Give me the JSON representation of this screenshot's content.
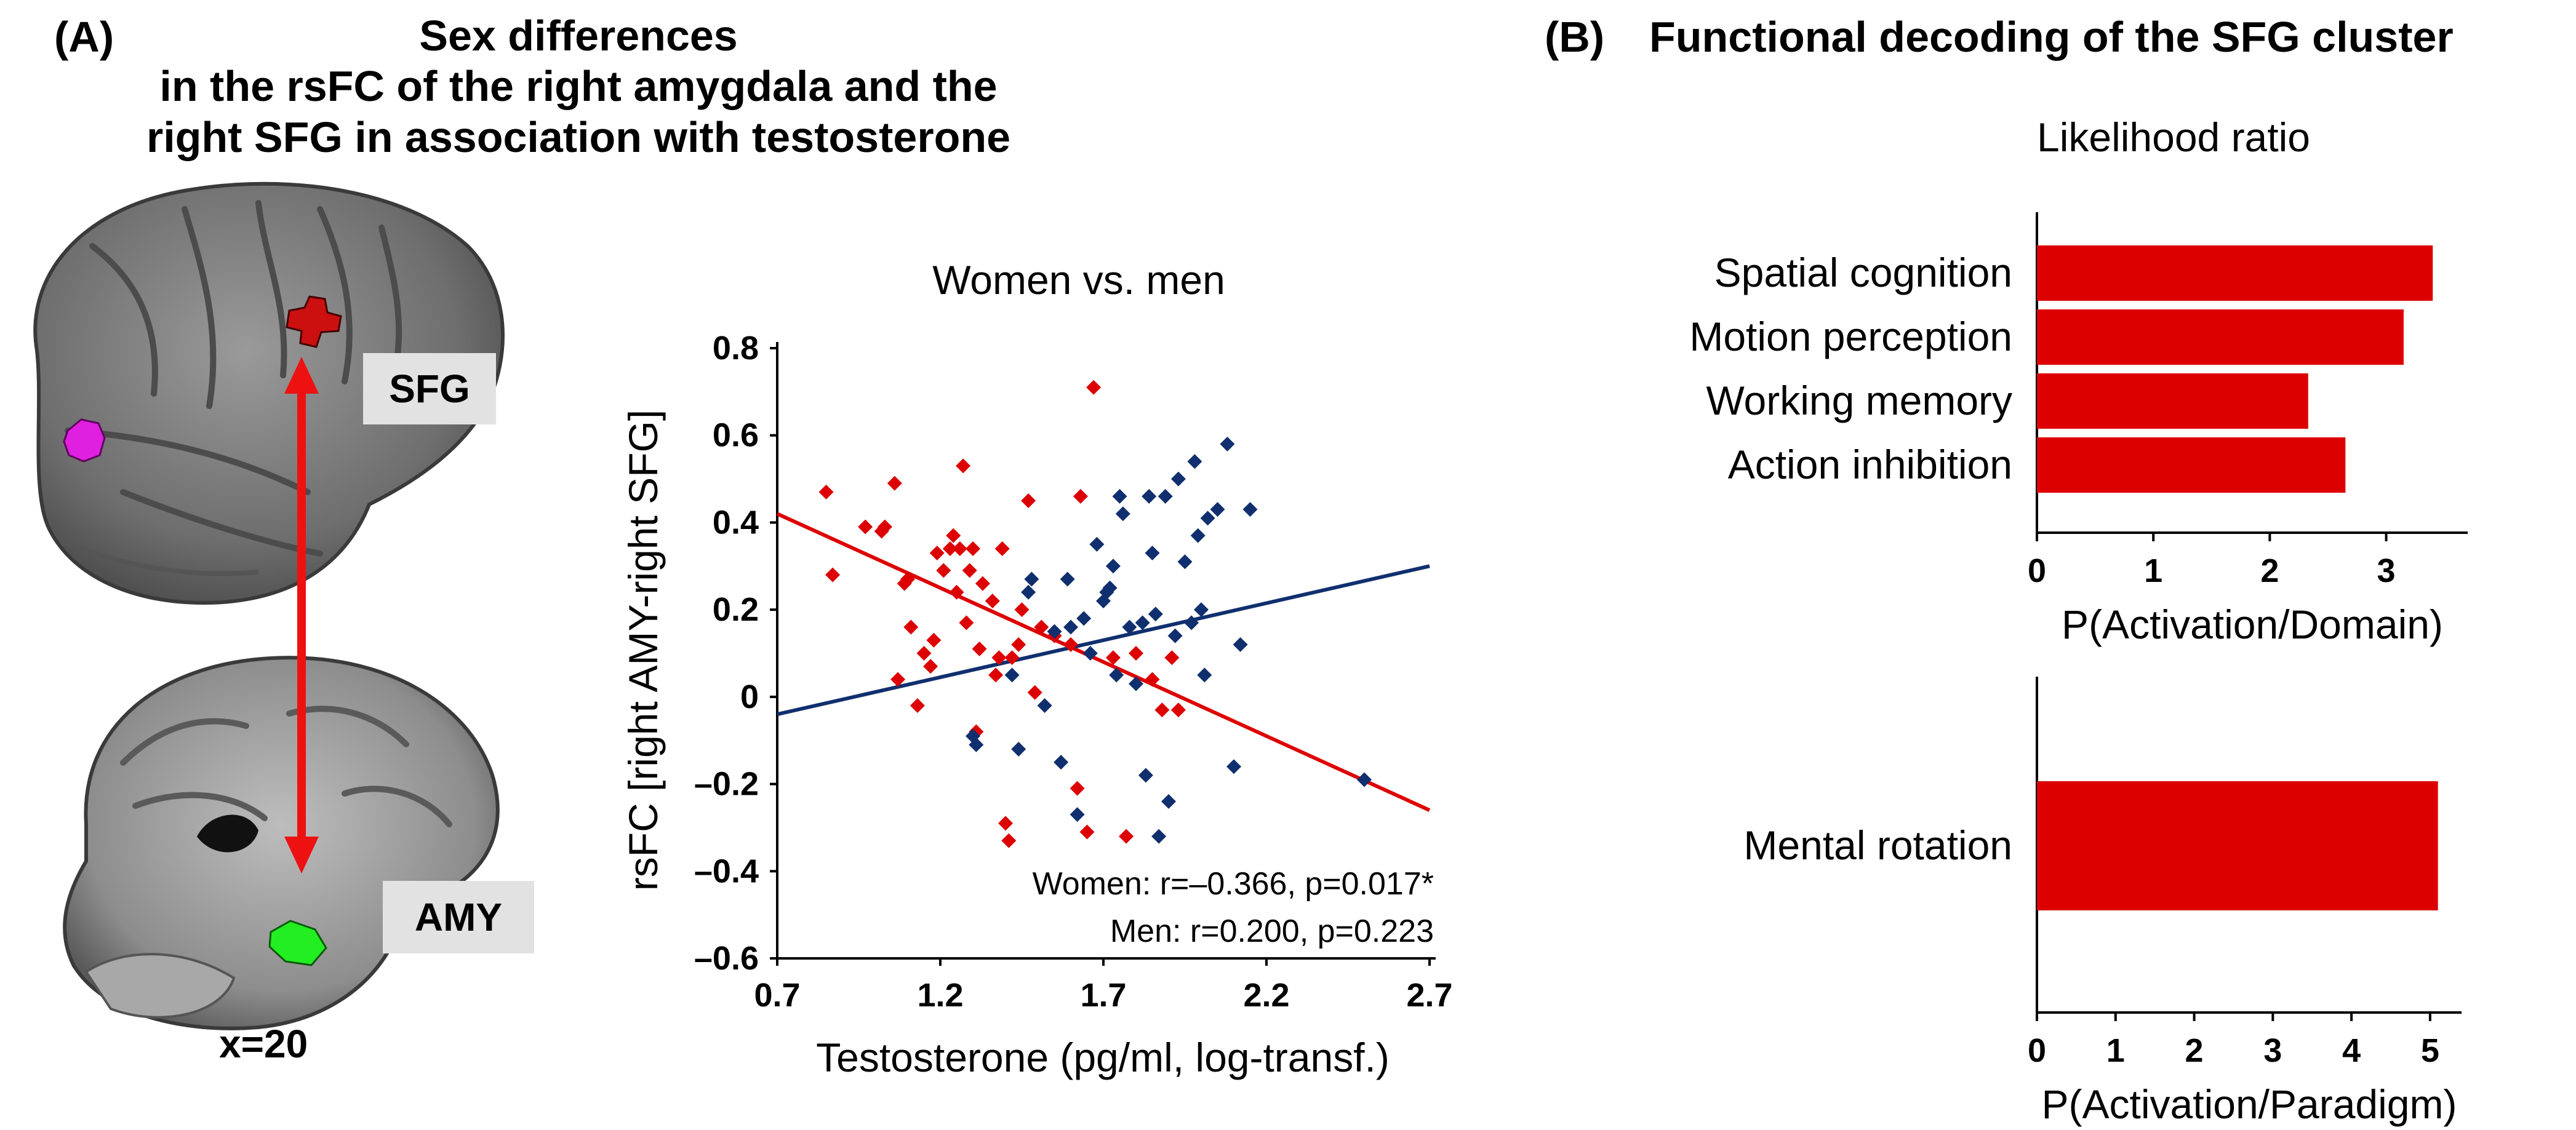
{
  "panel_a": {
    "label": "(A)",
    "title_lines": [
      "Sex differences",
      "in the rsFC of the right amygdala and the",
      "right SFG in association with testosterone"
    ],
    "brain": {
      "sfg_label": "SFG",
      "amy_label": "AMY",
      "slice_label": "x=20"
    },
    "colors": {
      "women": "#dd0000",
      "men": "#102f6e",
      "sfg_blob": "#cc1010",
      "amy_blob": "#22ee22",
      "other_blob": "#e020e0"
    }
  },
  "panel_b": {
    "label": "(B)",
    "title": "Functional decoding of the SFG cluster",
    "subtitle": "Likelihood ratio",
    "bar_color": "#dd0000"
  },
  "chart_data": [
    {
      "type": "scatter",
      "title": "Women vs. men",
      "xlabel": "Testosterone (pg/ml, log-transf.)",
      "ylabel": "rsFC [right AMY-right SFG]",
      "xlim": [
        0.7,
        2.7
      ],
      "ylim": [
        -0.6,
        0.8
      ],
      "x_ticks": [
        "0.7",
        "1.2",
        "1.7",
        "2.2",
        "2.7"
      ],
      "y_ticks": [
        "0.8",
        "0.6",
        "0.4",
        "0.2",
        "0",
        "–0.2",
        "–0.4",
        "–0.6"
      ],
      "series": [
        {
          "name": "Women",
          "color": "#dd0000",
          "marker": "diamond",
          "fit": {
            "x": [
              0.7,
              2.7
            ],
            "y": [
              0.42,
              -0.26
            ]
          },
          "stat": "Women: r=–0.366, p=0.017*",
          "points": [
            [
              0.85,
              0.47
            ],
            [
              0.87,
              0.28
            ],
            [
              0.97,
              0.39
            ],
            [
              1.02,
              0.38
            ],
            [
              1.03,
              0.39
            ],
            [
              1.06,
              0.49
            ],
            [
              1.07,
              0.04
            ],
            [
              1.09,
              0.26
            ],
            [
              1.1,
              0.27
            ],
            [
              1.11,
              0.16
            ],
            [
              1.13,
              -0.02
            ],
            [
              1.15,
              0.1
            ],
            [
              1.17,
              0.07
            ],
            [
              1.18,
              0.13
            ],
            [
              1.19,
              0.33
            ],
            [
              1.21,
              0.29
            ],
            [
              1.23,
              0.34
            ],
            [
              1.24,
              0.37
            ],
            [
              1.25,
              0.24
            ],
            [
              1.26,
              0.34
            ],
            [
              1.27,
              0.53
            ],
            [
              1.28,
              0.17
            ],
            [
              1.29,
              0.29
            ],
            [
              1.3,
              0.34
            ],
            [
              1.31,
              -0.08
            ],
            [
              1.32,
              0.11
            ],
            [
              1.33,
              0.26
            ],
            [
              1.36,
              0.22
            ],
            [
              1.37,
              0.05
            ],
            [
              1.38,
              0.09
            ],
            [
              1.39,
              0.34
            ],
            [
              1.4,
              -0.29
            ],
            [
              1.41,
              -0.33
            ],
            [
              1.42,
              0.09
            ],
            [
              1.44,
              0.12
            ],
            [
              1.45,
              0.2
            ],
            [
              1.47,
              0.45
            ],
            [
              1.49,
              0.01
            ],
            [
              1.51,
              0.16
            ],
            [
              1.55,
              0.14
            ],
            [
              1.6,
              0.12
            ],
            [
              1.62,
              -0.21
            ],
            [
              1.63,
              0.46
            ],
            [
              1.65,
              -0.31
            ],
            [
              1.67,
              0.71
            ],
            [
              1.73,
              0.09
            ],
            [
              1.77,
              -0.32
            ],
            [
              1.8,
              0.1
            ],
            [
              1.85,
              0.04
            ],
            [
              1.88,
              -0.03
            ],
            [
              1.91,
              0.09
            ],
            [
              1.93,
              -0.03
            ]
          ]
        },
        {
          "name": "Men",
          "color": "#102f6e",
          "marker": "diamond",
          "fit": {
            "x": [
              0.7,
              2.7
            ],
            "y": [
              -0.04,
              0.3
            ]
          },
          "stat": "Men: r=0.200, p=0.223",
          "points": [
            [
              1.3,
              -0.09
            ],
            [
              1.31,
              -0.11
            ],
            [
              1.42,
              0.05
            ],
            [
              1.44,
              -0.12
            ],
            [
              1.47,
              0.24
            ],
            [
              1.48,
              0.27
            ],
            [
              1.52,
              -0.02
            ],
            [
              1.55,
              0.15
            ],
            [
              1.57,
              -0.15
            ],
            [
              1.59,
              0.27
            ],
            [
              1.6,
              0.16
            ],
            [
              1.62,
              -0.27
            ],
            [
              1.64,
              0.18
            ],
            [
              1.66,
              0.1
            ],
            [
              1.68,
              0.35
            ],
            [
              1.7,
              0.22
            ],
            [
              1.71,
              0.24
            ],
            [
              1.72,
              0.25
            ],
            [
              1.73,
              0.3
            ],
            [
              1.74,
              0.05
            ],
            [
              1.75,
              0.46
            ],
            [
              1.76,
              0.42
            ],
            [
              1.78,
              0.16
            ],
            [
              1.8,
              0.03
            ],
            [
              1.82,
              0.17
            ],
            [
              1.83,
              -0.18
            ],
            [
              1.84,
              0.46
            ],
            [
              1.85,
              0.33
            ],
            [
              1.86,
              0.19
            ],
            [
              1.87,
              -0.32
            ],
            [
              1.89,
              0.46
            ],
            [
              1.9,
              -0.24
            ],
            [
              1.92,
              0.14
            ],
            [
              1.93,
              0.5
            ],
            [
              1.95,
              0.31
            ],
            [
              1.97,
              0.17
            ],
            [
              1.98,
              0.54
            ],
            [
              1.99,
              0.37
            ],
            [
              2.0,
              0.2
            ],
            [
              2.01,
              0.05
            ],
            [
              2.02,
              0.41
            ],
            [
              2.05,
              0.43
            ],
            [
              2.08,
              0.58
            ],
            [
              2.1,
              -0.16
            ],
            [
              2.12,
              0.12
            ],
            [
              2.15,
              0.43
            ],
            [
              2.5,
              -0.19
            ]
          ]
        }
      ]
    },
    {
      "type": "bar",
      "orientation": "horizontal",
      "categories": [
        "Spatial cognition",
        "Motion perception",
        "Working memory",
        "Action inhibition"
      ],
      "values": [
        3.4,
        3.15,
        2.33,
        2.65
      ],
      "xlabel": "P(Activation/Domain)",
      "x_ticks": [
        "0",
        "1",
        "2",
        "3"
      ],
      "xlim": [
        0,
        3.7
      ]
    },
    {
      "type": "bar",
      "orientation": "horizontal",
      "categories": [
        "Mental rotation"
      ],
      "values": [
        5.1
      ],
      "xlabel": "P(Activation/Paradigm)",
      "x_ticks": [
        "0",
        "1",
        "2",
        "3",
        "4",
        "5"
      ],
      "xlim": [
        0,
        5.4
      ]
    }
  ]
}
